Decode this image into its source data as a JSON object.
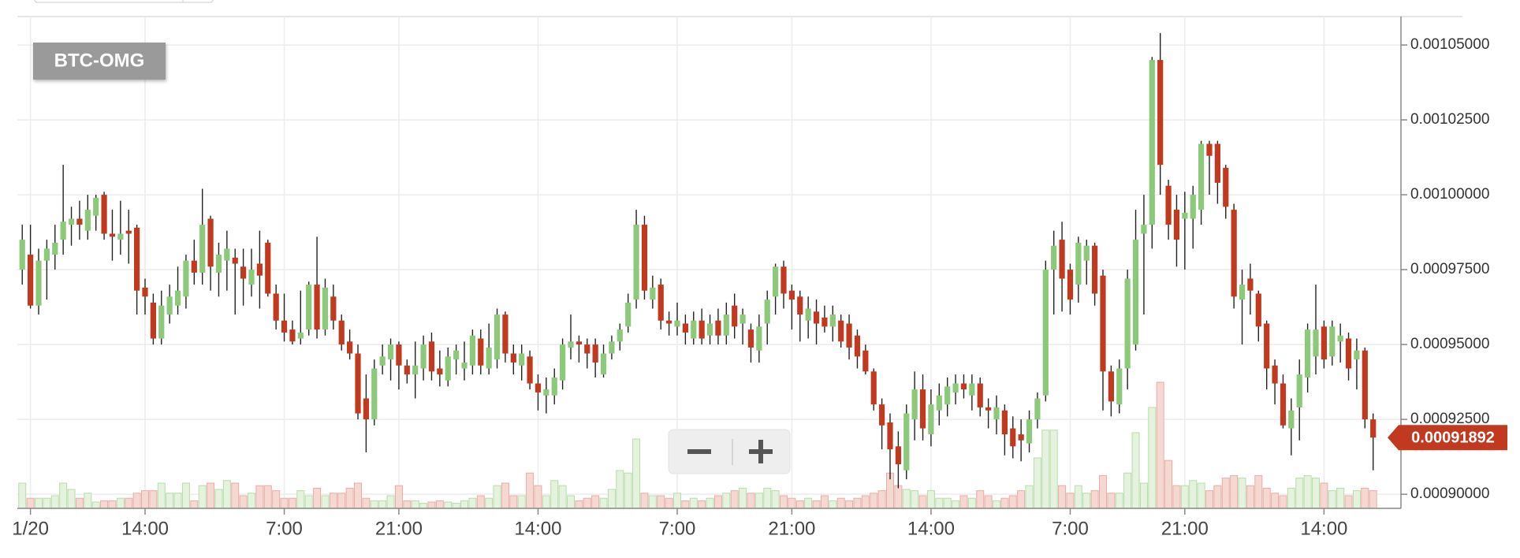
{
  "chart_data": {
    "type": "candlestick",
    "title": "BTC-OMG",
    "last_price": 0.00091892,
    "up_color": "#8dc97b",
    "down_color": "#c13a1f",
    "volume_up_color": "#e4f2de",
    "volume_down_color": "#f6d8d3",
    "grid": true,
    "xlim": [
      -0.6,
      168.4
    ],
    "xticks": [
      {
        "value": 1,
        "label": "1/20"
      },
      {
        "value": 15,
        "label": "14:00"
      },
      {
        "value": 32,
        "label": "7:00"
      },
      {
        "value": 46,
        "label": "21:00"
      },
      {
        "value": 63,
        "label": "14:00"
      },
      {
        "value": 80,
        "label": "7:00"
      },
      {
        "value": 94,
        "label": "21:00"
      },
      {
        "value": 111,
        "label": "14:00"
      },
      {
        "value": 128,
        "label": "7:00"
      },
      {
        "value": 142,
        "label": "21:00"
      },
      {
        "value": 159,
        "label": "14:00"
      }
    ],
    "ylim": [
      0.0008953,
      0.0010595
    ],
    "yticks": [
      {
        "value": 0.0009,
        "label": "0.00090000"
      },
      {
        "value": 0.000925,
        "label": "0.00092500"
      },
      {
        "value": 0.00095,
        "label": "0.00095000"
      },
      {
        "value": 0.000975,
        "label": "0.00097500"
      },
      {
        "value": 0.001,
        "label": "0.00100000"
      },
      {
        "value": 0.001025,
        "label": "0.00102500"
      },
      {
        "value": 0.00105,
        "label": "0.00105000"
      }
    ],
    "y2lim": [
      0,
      100
    ],
    "ohlc": [
      [
        0.000975,
        0.00099,
        0.00097,
        0.000985
      ],
      [
        0.00098,
        0.00099,
        0.000962,
        0.000963
      ],
      [
        0.000963,
        0.000982,
        0.00096,
        0.000978
      ],
      [
        0.000978,
        0.000985,
        0.000965,
        0.000982
      ],
      [
        0.00098,
        0.00099,
        0.000975,
        0.000984
      ],
      [
        0.000985,
        0.00101,
        0.00098,
        0.000991
      ],
      [
        0.00099,
        0.000996,
        0.000983,
        0.000992
      ],
      [
        0.000992,
        0.000998,
        0.000985,
        0.00099
      ],
      [
        0.000988,
        0.001,
        0.000985,
        0.000995
      ],
      [
        0.000993,
        0.001,
        0.000988,
        0.000999
      ],
      [
        0.001,
        0.001001,
        0.000985,
        0.000987
      ],
      [
        0.000987,
        0.000995,
        0.000978,
        0.000986
      ],
      [
        0.000985,
        0.000998,
        0.00098,
        0.000987
      ],
      [
        0.000988,
        0.000995,
        0.000977,
        0.000987
      ],
      [
        0.000989,
        0.00099,
        0.00096,
        0.000968
      ],
      [
        0.000969,
        0.000972,
        0.00096,
        0.000966
      ],
      [
        0.000964,
        0.000967,
        0.00095,
        0.000952
      ],
      [
        0.000952,
        0.000968,
        0.00095,
        0.000963
      ],
      [
        0.00096,
        0.00097,
        0.000957,
        0.000966
      ],
      [
        0.000963,
        0.000976,
        0.00096,
        0.000968
      ],
      [
        0.000966,
        0.00098,
        0.000962,
        0.000978
      ],
      [
        0.000978,
        0.000985,
        0.00097,
        0.000974
      ],
      [
        0.000974,
        0.001002,
        0.00097,
        0.00099
      ],
      [
        0.000992,
        0.000993,
        0.000968,
        0.000976
      ],
      [
        0.000974,
        0.000984,
        0.000966,
        0.00098
      ],
      [
        0.000978,
        0.000988,
        0.000968,
        0.000982
      ],
      [
        0.000979,
        0.000982,
        0.00096,
        0.000977
      ],
      [
        0.000976,
        0.000982,
        0.000963,
        0.000972
      ],
      [
        0.00097,
        0.000982,
        0.000966,
        0.000975
      ],
      [
        0.000977,
        0.000988,
        0.000962,
        0.000973
      ],
      [
        0.000984,
        0.000985,
        0.000966,
        0.000967
      ],
      [
        0.000967,
        0.00097,
        0.000955,
        0.000958
      ],
      [
        0.000958,
        0.000967,
        0.000951,
        0.000954
      ],
      [
        0.000955,
        0.000958,
        0.00095,
        0.000951
      ],
      [
        0.000952,
        0.000968,
        0.00095,
        0.000954
      ],
      [
        0.000955,
        0.000971,
        0.000953,
        0.00097
      ],
      [
        0.00097,
        0.000986,
        0.000952,
        0.000955
      ],
      [
        0.000955,
        0.000972,
        0.000953,
        0.000969
      ],
      [
        0.000966,
        0.00097,
        0.000955,
        0.000958
      ],
      [
        0.000958,
        0.00096,
        0.000948,
        0.00095
      ],
      [
        0.000951,
        0.000955,
        0.000945,
        0.000947
      ],
      [
        0.000947,
        0.00095,
        0.000925,
        0.000927
      ],
      [
        0.000932,
        0.00094,
        0.000914,
        0.000925
      ],
      [
        0.000925,
        0.000945,
        0.000923,
        0.000942
      ],
      [
        0.000943,
        0.00095,
        0.00094,
        0.000946
      ],
      [
        0.000945,
        0.000952,
        0.000938,
        0.00095
      ],
      [
        0.00095,
        0.000951,
        0.000935,
        0.000943
      ],
      [
        0.000943,
        0.000945,
        0.000937,
        0.00094
      ],
      [
        0.00094,
        0.000951,
        0.000932,
        0.000943
      ],
      [
        0.000942,
        0.000953,
        0.000938,
        0.00095
      ],
      [
        0.000951,
        0.000954,
        0.000938,
        0.000941
      ],
      [
        0.000942,
        0.000948,
        0.000936,
        0.00094
      ],
      [
        0.000938,
        0.000949,
        0.000936,
        0.000946
      ],
      [
        0.000945,
        0.00095,
        0.00094,
        0.000948
      ],
      [
        0.000942,
        0.000951,
        0.000938,
        0.000944
      ],
      [
        0.000943,
        0.000955,
        0.00094,
        0.000953
      ],
      [
        0.000952,
        0.000955,
        0.00094,
        0.000943
      ],
      [
        0.000942,
        0.000957,
        0.00094,
        0.000949
      ],
      [
        0.000945,
        0.000962,
        0.000942,
        0.00096
      ],
      [
        0.00096,
        0.000961,
        0.000944,
        0.000947
      ],
      [
        0.000947,
        0.00095,
        0.00094,
        0.000944
      ],
      [
        0.000943,
        0.00095,
        0.000938,
        0.000947
      ],
      [
        0.000946,
        0.000948,
        0.000935,
        0.000937
      ],
      [
        0.000937,
        0.00094,
        0.000928,
        0.000934
      ],
      [
        0.000933,
        0.000939,
        0.000927,
        0.000935
      ],
      [
        0.000933,
        0.000942,
        0.00093,
        0.000939
      ],
      [
        0.000938,
        0.000952,
        0.000935,
        0.00095
      ],
      [
        0.000949,
        0.00096,
        0.000945,
        0.000951
      ],
      [
        0.000951,
        0.000953,
        0.000944,
        0.00095
      ],
      [
        0.00095,
        0.000952,
        0.000942,
        0.000947
      ],
      [
        0.00095,
        0.000952,
        0.000939,
        0.000944
      ],
      [
        0.00094,
        0.00095,
        0.000939,
        0.000947
      ],
      [
        0.000947,
        0.000953,
        0.000945,
        0.000951
      ],
      [
        0.000951,
        0.000957,
        0.000948,
        0.000955
      ],
      [
        0.000956,
        0.000967,
        0.000954,
        0.000964
      ],
      [
        0.000965,
        0.000995,
        0.000962,
        0.00099
      ],
      [
        0.00099,
        0.000993,
        0.000965,
        0.000968
      ],
      [
        0.000965,
        0.000973,
        0.000962,
        0.000969
      ],
      [
        0.00097,
        0.000972,
        0.000955,
        0.000958
      ],
      [
        0.000958,
        0.000961,
        0.000953,
        0.000957
      ],
      [
        0.000956,
        0.000964,
        0.000953,
        0.000958
      ],
      [
        0.000957,
        0.00096,
        0.00095,
        0.000954
      ],
      [
        0.000952,
        0.000961,
        0.00095,
        0.000958
      ],
      [
        0.000958,
        0.000962,
        0.00095,
        0.000952
      ],
      [
        0.000953,
        0.00096,
        0.00095,
        0.000957
      ],
      [
        0.000958,
        0.000962,
        0.00095,
        0.000953
      ],
      [
        0.000953,
        0.000964,
        0.00095,
        0.00096
      ],
      [
        0.000963,
        0.000967,
        0.000952,
        0.000956
      ],
      [
        0.000957,
        0.000962,
        0.00095,
        0.00096
      ],
      [
        0.000955,
        0.000957,
        0.000944,
        0.000949
      ],
      [
        0.000948,
        0.00096,
        0.000944,
        0.000956
      ],
      [
        0.000957,
        0.000968,
        0.00095,
        0.000965
      ],
      [
        0.000966,
        0.000977,
        0.00096,
        0.000976
      ],
      [
        0.000976,
        0.000978,
        0.000962,
        0.000967
      ],
      [
        0.000968,
        0.00097,
        0.000955,
        0.000965
      ],
      [
        0.000966,
        0.000968,
        0.000951,
        0.00096
      ],
      [
        0.000958,
        0.000966,
        0.000952,
        0.000962
      ],
      [
        0.000961,
        0.000965,
        0.00095,
        0.000957
      ],
      [
        0.000959,
        0.000963,
        0.000954,
        0.000956
      ],
      [
        0.000956,
        0.000963,
        0.000951,
        0.00096
      ],
      [
        0.000958,
        0.00096,
        0.000949,
        0.000951
      ],
      [
        0.000957,
        0.00096,
        0.000945,
        0.000949
      ],
      [
        0.000953,
        0.000955,
        0.000942,
        0.000946
      ],
      [
        0.000948,
        0.00095,
        0.00094,
        0.000941
      ],
      [
        0.000941,
        0.000942,
        0.000928,
        0.00093
      ],
      [
        0.00093,
        0.000932,
        0.000915,
        0.000923
      ],
      [
        0.000924,
        0.000927,
        0.000905,
        0.000915
      ],
      [
        0.000916,
        0.000921,
        0.000902,
        0.00091
      ],
      [
        0.000908,
        0.00093,
        0.000905,
        0.000927
      ],
      [
        0.000925,
        0.000941,
        0.000918,
        0.000935
      ],
      [
        0.000935,
        0.00094,
        0.000918,
        0.000922
      ],
      [
        0.00092,
        0.000935,
        0.000916,
        0.00093
      ],
      [
        0.000928,
        0.000937,
        0.000923,
        0.000933
      ],
      [
        0.00093,
        0.000939,
        0.000926,
        0.000936
      ],
      [
        0.000934,
        0.00094,
        0.00093,
        0.000937
      ],
      [
        0.000937,
        0.00094,
        0.000932,
        0.000935
      ],
      [
        0.000933,
        0.00094,
        0.000928,
        0.000937
      ],
      [
        0.000937,
        0.000939,
        0.000926,
        0.000929
      ],
      [
        0.000929,
        0.000932,
        0.000922,
        0.000928
      ],
      [
        0.000925,
        0.000933,
        0.00092,
        0.000929
      ],
      [
        0.000928,
        0.00093,
        0.000913,
        0.00092
      ],
      [
        0.000922,
        0.000926,
        0.000912,
        0.000916
      ],
      [
        0.00092,
        0.000925,
        0.000911,
        0.000918
      ],
      [
        0.000917,
        0.000928,
        0.000914,
        0.000925
      ],
      [
        0.000925,
        0.000934,
        0.000922,
        0.000932
      ],
      [
        0.000933,
        0.000978,
        0.000931,
        0.000975
      ],
      [
        0.000975,
        0.000988,
        0.00096,
        0.000983
      ],
      [
        0.000985,
        0.000991,
        0.000961,
        0.000972
      ],
      [
        0.000975,
        0.000977,
        0.00096,
        0.000965
      ],
      [
        0.00097,
        0.000986,
        0.000964,
        0.000984
      ],
      [
        0.000978,
        0.000985,
        0.00097,
        0.000983
      ],
      [
        0.000983,
        0.000984,
        0.000963,
        0.000967
      ],
      [
        0.000973,
        0.000975,
        0.000928,
        0.000941
      ],
      [
        0.000941,
        0.000943,
        0.000926,
        0.000931
      ],
      [
        0.00093,
        0.000945,
        0.000927,
        0.000942
      ],
      [
        0.000942,
        0.000975,
        0.000935,
        0.000972
      ],
      [
        0.00095,
        0.000995,
        0.000948,
        0.000985
      ],
      [
        0.000987,
        0.001,
        0.00096,
        0.00099
      ],
      [
        0.00099,
        0.001046,
        0.000982,
        0.001045
      ],
      [
        0.001045,
        0.001054,
        0.001,
        0.00101
      ],
      [
        0.001003,
        0.001005,
        0.000985,
        0.00099
      ],
      [
        0.000995,
        0.001,
        0.000976,
        0.000985
      ],
      [
        0.000992,
        0.001001,
        0.000975,
        0.000994
      ],
      [
        0.000992,
        0.001003,
        0.000982,
        0.001
      ],
      [
        0.000995,
        0.001018,
        0.00099,
        0.001017
      ],
      [
        0.001017,
        0.001018,
        0.001,
        0.001013
      ],
      [
        0.001017,
        0.001018,
        0.000997,
        0.001004
      ],
      [
        0.001009,
        0.00101,
        0.000992,
        0.000996
      ],
      [
        0.000995,
        0.000997,
        0.000962,
        0.000966
      ],
      [
        0.000965,
        0.000975,
        0.00095,
        0.00097
      ],
      [
        0.000972,
        0.000977,
        0.00096,
        0.000968
      ],
      [
        0.000967,
        0.000968,
        0.000951,
        0.000956
      ],
      [
        0.000957,
        0.000958,
        0.000935,
        0.000942
      ],
      [
        0.000943,
        0.000945,
        0.00093,
        0.000937
      ],
      [
        0.000937,
        0.00094,
        0.000922,
        0.000923
      ],
      [
        0.000922,
        0.000932,
        0.000913,
        0.000928
      ],
      [
        0.000929,
        0.000945,
        0.000918,
        0.00094
      ],
      [
        0.000939,
        0.000957,
        0.000934,
        0.000955
      ],
      [
        0.000946,
        0.00097,
        0.00094,
        0.000955
      ],
      [
        0.000956,
        0.000958,
        0.000942,
        0.000945
      ],
      [
        0.000946,
        0.000958,
        0.000943,
        0.000956
      ],
      [
        0.000951,
        0.000957,
        0.000944,
        0.000953
      ],
      [
        0.000952,
        0.000954,
        0.000938,
        0.000942
      ],
      [
        0.000945,
        0.000952,
        0.000935,
        0.000948
      ],
      [
        0.000948,
        0.000949,
        0.000922,
        0.000925
      ],
      [
        0.000925,
        0.000927,
        0.000908,
        0.00091892
      ]
    ],
    "volume": [
      20,
      8,
      8,
      8,
      10,
      20,
      15,
      8,
      12,
      5,
      6,
      6,
      8,
      8,
      12,
      14,
      14,
      20,
      12,
      12,
      20,
      6,
      18,
      20,
      15,
      22,
      20,
      10,
      12,
      18,
      18,
      14,
      8,
      8,
      14,
      10,
      16,
      10,
      12,
      12,
      16,
      20,
      8,
      6,
      6,
      10,
      18,
      6,
      6,
      4,
      5,
      6,
      5,
      4,
      6,
      8,
      10,
      8,
      18,
      20,
      10,
      10,
      28,
      18,
      10,
      22,
      18,
      10,
      6,
      8,
      10,
      8,
      15,
      30,
      28,
      55,
      12,
      10,
      10,
      8,
      12,
      6,
      8,
      6,
      8,
      10,
      12,
      14,
      16,
      12,
      12,
      16,
      14,
      10,
      8,
      6,
      8,
      6,
      10,
      6,
      8,
      6,
      8,
      10,
      12,
      14,
      28,
      18,
      15,
      14,
      10,
      14,
      8,
      8,
      6,
      10,
      8,
      14,
      10,
      6,
      8,
      10,
      14,
      18,
      40,
      62,
      62,
      18,
      12,
      18,
      12,
      14,
      26,
      12,
      12,
      28,
      60,
      20,
      80,
      100,
      38,
      18,
      18,
      22,
      20,
      14,
      18,
      24,
      26,
      24,
      18,
      26,
      16,
      12,
      10,
      16,
      24,
      26,
      24,
      20,
      14,
      16,
      10,
      14,
      16,
      14
    ]
  }
}
